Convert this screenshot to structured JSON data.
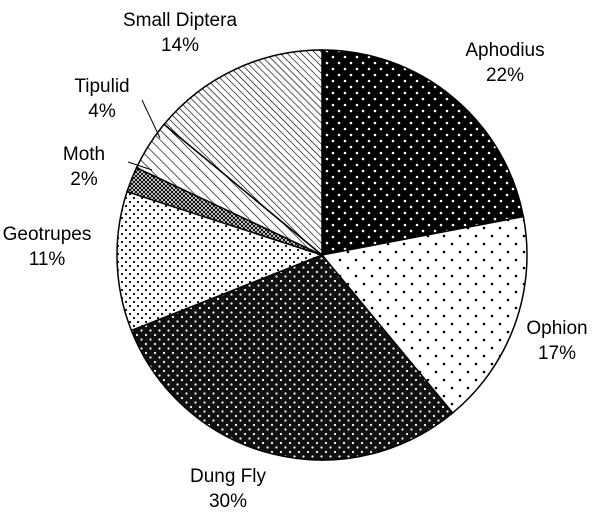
{
  "chart_data": {
    "type": "pie",
    "categories": [
      "Aphodius",
      "Ophion",
      "Dung Fly",
      "Geotrupes",
      "Moth",
      "Tipulid",
      "Small Diptera"
    ],
    "values": [
      22,
      17,
      30,
      11,
      2,
      4,
      14
    ],
    "value_labels": [
      "22%",
      "17%",
      "30%",
      "11%",
      "2%",
      "4%",
      "14%"
    ]
  }
}
